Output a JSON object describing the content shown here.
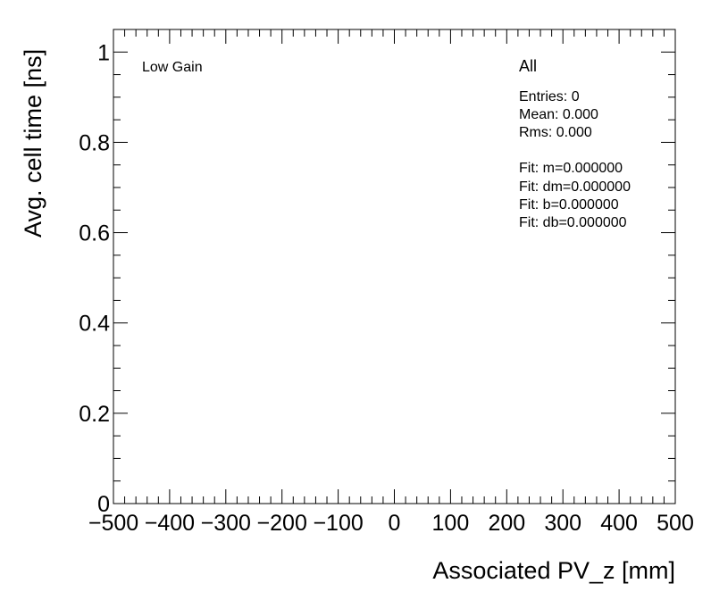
{
  "chart_data": {
    "type": "scatter",
    "title": "",
    "xlabel": "Associated PV_z [mm]",
    "ylabel": "Avg. cell time [ns]",
    "xlim": [
      -500,
      500
    ],
    "ylim": [
      0,
      1.05
    ],
    "x_ticks": [
      -500,
      -400,
      -300,
      -200,
      -100,
      0,
      100,
      200,
      300,
      400,
      500
    ],
    "x_tick_labels": [
      "−500",
      "−400",
      "−300",
      "−200",
      "−100",
      "0",
      "100",
      "200",
      "300",
      "400",
      "500"
    ],
    "y_ticks": [
      0,
      0.2,
      0.4,
      0.6,
      0.8,
      1
    ],
    "y_tick_labels": [
      "0",
      "0.2",
      "0.4",
      "0.6",
      "0.8",
      "1"
    ],
    "grid": false,
    "series": [],
    "annotations": {
      "gain_label": "Low Gain",
      "stats_title": "All",
      "entries": "Entries: 0",
      "mean": "Mean: 0.000",
      "rms": "Rms: 0.000",
      "fit_m": "Fit: m=0.000000",
      "fit_dm": "Fit: dm=0.000000",
      "fit_b": "Fit: b=0.000000",
      "fit_db": "Fit: db=0.000000"
    }
  }
}
